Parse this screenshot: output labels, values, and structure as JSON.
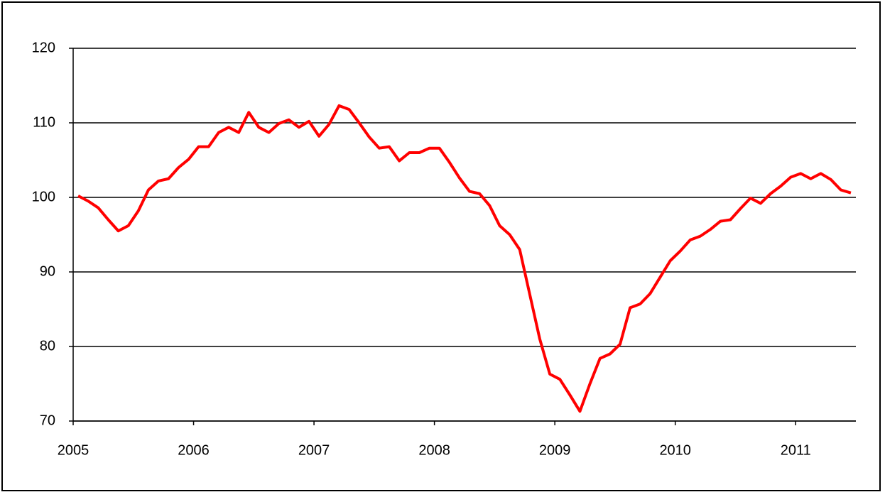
{
  "chart_data": {
    "type": "line",
    "categories": [
      "2005",
      null,
      null,
      null,
      null,
      null,
      null,
      null,
      null,
      null,
      null,
      null,
      "2006",
      null,
      null,
      null,
      null,
      null,
      null,
      null,
      null,
      null,
      null,
      null,
      "2007",
      null,
      null,
      null,
      null,
      null,
      null,
      null,
      null,
      null,
      null,
      null,
      "2008",
      null,
      null,
      null,
      null,
      null,
      null,
      null,
      null,
      null,
      null,
      null,
      "2009",
      null,
      null,
      null,
      null,
      null,
      null,
      null,
      null,
      null,
      null,
      null,
      "2010",
      null,
      null,
      null,
      null,
      null,
      null,
      null,
      null,
      null,
      null,
      null,
      "2011",
      null,
      null,
      null,
      null,
      null
    ],
    "values": [
      100.2,
      99.5,
      98.6,
      97,
      95.5,
      96.2,
      98.2,
      101,
      102.2,
      102.5,
      104,
      105.1,
      106.8,
      106.8,
      108.7,
      109.4,
      108.7,
      111.4,
      109.4,
      108.7,
      109.9,
      110.4,
      109.4,
      110.2,
      108.2,
      109.8,
      112.3,
      111.8,
      110,
      108.1,
      106.6,
      106.8,
      104.9,
      106,
      106,
      106.6,
      106.6,
      104.7,
      102.6,
      100.8,
      100.5,
      98.9,
      96.2,
      95,
      93,
      87,
      81,
      76.3,
      75.6,
      73.5,
      71.3,
      75,
      78.4,
      79,
      80.3,
      85.2,
      85.7,
      87.1,
      89.3,
      91.5,
      92.8,
      94.3,
      94.8,
      95.7,
      96.8,
      97,
      98.5,
      99.9,
      99.2,
      100.5,
      101.5,
      102.7,
      103.2,
      102.5,
      103.2,
      102.4,
      101,
      100.6
    ],
    "color": "#ff0000",
    "ylim": [
      70,
      120
    ],
    "yticks": [
      70,
      80,
      90,
      100,
      110,
      120
    ],
    "grid": true
  }
}
